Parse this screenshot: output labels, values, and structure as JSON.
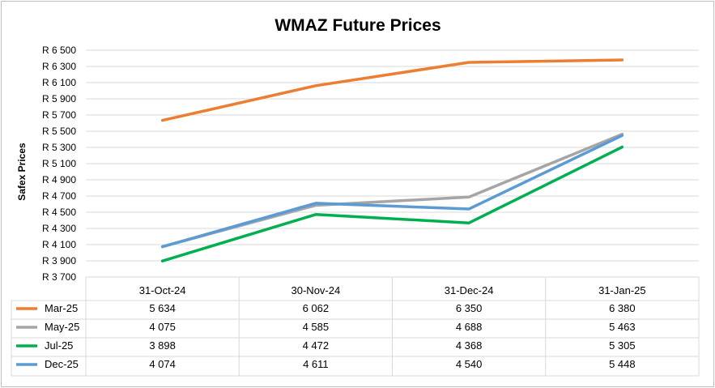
{
  "chart_data": {
    "type": "line",
    "title": "WMAZ Future Prices",
    "ylabel": "Safex Prices",
    "xlabel": "",
    "ylim": [
      3700,
      6500
    ],
    "ytick_step": 200,
    "ytick_labels": [
      "R 3 700",
      "R 3 900",
      "R 4 100",
      "R 4 300",
      "R 4 500",
      "R 4 700",
      "R 4 900",
      "R 5 100",
      "R 5 300",
      "R 5 500",
      "R 5 700",
      "R 5 900",
      "R 6 100",
      "R 6 300",
      "R 6 500"
    ],
    "categories": [
      "31-Oct-24",
      "30-Nov-24",
      "31-Dec-24",
      "31-Jan-25"
    ],
    "grid": true,
    "legend": "data-table",
    "series": [
      {
        "name": "Mar-25",
        "color": "#ED7D31",
        "values": [
          5634,
          6062,
          6350,
          6380
        ],
        "labels": [
          "5 634",
          "6 062",
          "6 350",
          "6 380"
        ]
      },
      {
        "name": "May-25",
        "color": "#A5A5A5",
        "values": [
          4075,
          4585,
          4688,
          5463
        ],
        "labels": [
          "4 075",
          "4 585",
          "4 688",
          "5 463"
        ]
      },
      {
        "name": "Jul-25",
        "color": "#00B050",
        "values": [
          3898,
          4472,
          4368,
          5305
        ],
        "labels": [
          "3 898",
          "4 472",
          "4 368",
          "5 305"
        ]
      },
      {
        "name": "Dec-25",
        "color": "#5B9BD5",
        "values": [
          4074,
          4611,
          4540,
          5448
        ],
        "labels": [
          "4 074",
          "4 611",
          "4 540",
          "5 448"
        ]
      }
    ]
  }
}
